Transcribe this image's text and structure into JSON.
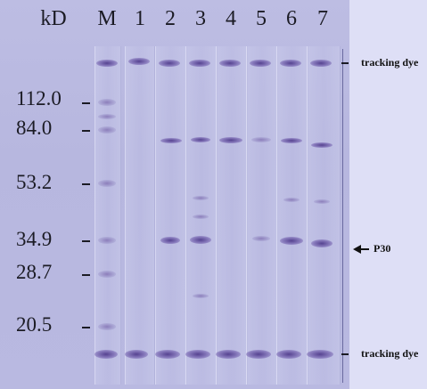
{
  "header": {
    "unit_label": "kD",
    "lanes": [
      "M",
      "1",
      "2",
      "3",
      "4",
      "5",
      "6",
      "7"
    ]
  },
  "markers": [
    "112.0",
    "84.0",
    "53.2",
    "34.9",
    "28.7",
    "20.5"
  ],
  "annotations": {
    "top_dye": "tracking dye",
    "p30": "P30",
    "bottom_dye": "tracking dye"
  },
  "colors": {
    "membrane": "#b9b9e1",
    "band": "#503c8c",
    "background": "#dedff6"
  }
}
